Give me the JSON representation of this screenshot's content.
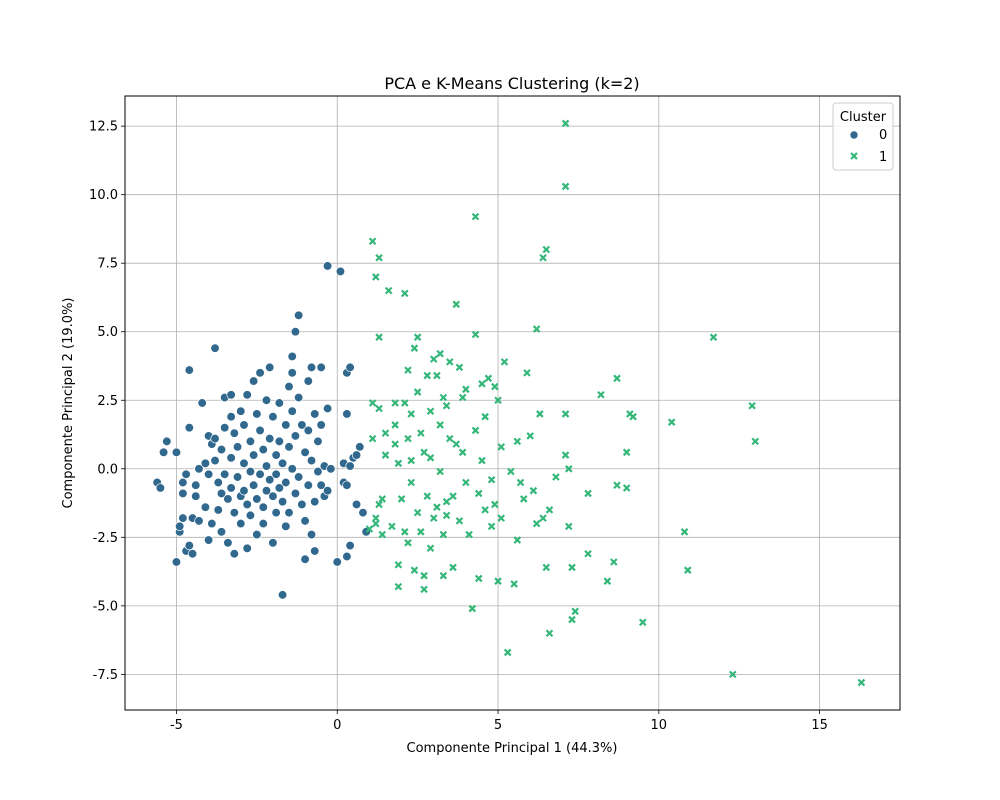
{
  "chart_data": {
    "type": "scatter",
    "title": "PCA e K-Means Clustering (k=2)",
    "xlabel": "Componente Principal 1 (44.3%)",
    "ylabel": "Componente Principal 2 (19.0%)",
    "xlim": [
      -6.6,
      17.5
    ],
    "ylim": [
      -8.8,
      13.6
    ],
    "xticks": [
      -5,
      0,
      5,
      10,
      15
    ],
    "yticks": [
      -7.5,
      -5.0,
      -2.5,
      0.0,
      2.5,
      5.0,
      7.5,
      10.0,
      12.5
    ],
    "grid": true,
    "legend": {
      "title": "Cluster",
      "placement": "top-right"
    },
    "colors": {
      "0": "#31688e",
      "1": "#35b779"
    },
    "series": [
      {
        "name": "0",
        "marker": "circle",
        "color": "#31688e",
        "points": [
          [
            -5.6,
            -0.5
          ],
          [
            -5.5,
            -0.7
          ],
          [
            -5.4,
            0.6
          ],
          [
            -5.3,
            1.0
          ],
          [
            -5.0,
            0.6
          ],
          [
            -5.0,
            -3.4
          ],
          [
            -4.9,
            -2.3
          ],
          [
            -4.9,
            -2.1
          ],
          [
            -4.8,
            -0.5
          ],
          [
            -4.8,
            -0.9
          ],
          [
            -4.8,
            -1.8
          ],
          [
            -4.7,
            -0.2
          ],
          [
            -4.7,
            -3.0
          ],
          [
            -4.6,
            1.5
          ],
          [
            -4.6,
            3.6
          ],
          [
            -4.6,
            -2.8
          ],
          [
            -4.5,
            -1.8
          ],
          [
            -4.5,
            -3.1
          ],
          [
            -4.4,
            -0.6
          ],
          [
            -4.4,
            -1.0
          ],
          [
            -4.3,
            0.0
          ],
          [
            -4.3,
            -1.9
          ],
          [
            -4.2,
            2.4
          ],
          [
            -4.1,
            0.2
          ],
          [
            -4.1,
            -1.4
          ],
          [
            -4.0,
            1.2
          ],
          [
            -4.0,
            -0.2
          ],
          [
            -4.0,
            -2.6
          ],
          [
            -3.9,
            0.9
          ],
          [
            -3.9,
            -2.0
          ],
          [
            -3.8,
            4.4
          ],
          [
            -3.8,
            1.1
          ],
          [
            -3.8,
            0.3
          ],
          [
            -3.7,
            -0.5
          ],
          [
            -3.7,
            -1.5
          ],
          [
            -3.6,
            0.7
          ],
          [
            -3.6,
            -0.9
          ],
          [
            -3.6,
            -2.3
          ],
          [
            -3.5,
            2.6
          ],
          [
            -3.5,
            1.5
          ],
          [
            -3.5,
            -0.2
          ],
          [
            -3.4,
            -1.1
          ],
          [
            -3.4,
            -2.7
          ],
          [
            -3.3,
            2.7
          ],
          [
            -3.3,
            1.9
          ],
          [
            -3.3,
            0.4
          ],
          [
            -3.3,
            -0.7
          ],
          [
            -3.2,
            1.3
          ],
          [
            -3.2,
            -1.6
          ],
          [
            -3.2,
            -3.1
          ],
          [
            -3.1,
            0.8
          ],
          [
            -3.1,
            -0.3
          ],
          [
            -3.0,
            2.1
          ],
          [
            -3.0,
            -1.0
          ],
          [
            -3.0,
            -2.0
          ],
          [
            -2.9,
            1.6
          ],
          [
            -2.9,
            0.2
          ],
          [
            -2.9,
            -0.8
          ],
          [
            -2.8,
            2.7
          ],
          [
            -2.8,
            -1.3
          ],
          [
            -2.8,
            -2.9
          ],
          [
            -2.7,
            1.0
          ],
          [
            -2.7,
            -0.1
          ],
          [
            -2.7,
            -1.7
          ],
          [
            -2.6,
            3.2
          ],
          [
            -2.6,
            0.5
          ],
          [
            -2.6,
            -0.6
          ],
          [
            -2.5,
            2.0
          ],
          [
            -2.5,
            -1.1
          ],
          [
            -2.5,
            -2.4
          ],
          [
            -2.4,
            3.5
          ],
          [
            -2.4,
            1.4
          ],
          [
            -2.4,
            -0.2
          ],
          [
            -2.3,
            0.7
          ],
          [
            -2.3,
            -1.4
          ],
          [
            -2.3,
            -2.0
          ],
          [
            -2.2,
            2.5
          ],
          [
            -2.2,
            0.1
          ],
          [
            -2.2,
            -0.8
          ],
          [
            -2.1,
            3.7
          ],
          [
            -2.1,
            1.1
          ],
          [
            -2.1,
            -0.4
          ],
          [
            -2.0,
            1.9
          ],
          [
            -2.0,
            -1.0
          ],
          [
            -2.0,
            -2.7
          ],
          [
            -1.9,
            0.5
          ],
          [
            -1.9,
            -0.2
          ],
          [
            -1.9,
            -1.6
          ],
          [
            -1.8,
            2.4
          ],
          [
            -1.8,
            1.0
          ],
          [
            -1.8,
            -0.7
          ],
          [
            -1.7,
            -4.6
          ],
          [
            -1.7,
            0.2
          ],
          [
            -1.7,
            -1.2
          ],
          [
            -1.6,
            1.6
          ],
          [
            -1.6,
            -0.5
          ],
          [
            -1.6,
            -2.1
          ],
          [
            -1.5,
            3.0
          ],
          [
            -1.5,
            0.8
          ],
          [
            -1.5,
            -1.6
          ],
          [
            -1.4,
            4.1
          ],
          [
            -1.4,
            3.5
          ],
          [
            -1.4,
            2.1
          ],
          [
            -1.4,
            0.0
          ],
          [
            -1.3,
            5.0
          ],
          [
            -1.3,
            1.2
          ],
          [
            -1.3,
            -0.9
          ],
          [
            -1.2,
            5.6
          ],
          [
            -1.2,
            2.6
          ],
          [
            -1.2,
            -0.3
          ],
          [
            -1.1,
            1.6
          ],
          [
            -1.1,
            -1.3
          ],
          [
            -1.0,
            -3.3
          ],
          [
            -1.0,
            0.6
          ],
          [
            -1.0,
            -1.9
          ],
          [
            -0.9,
            3.2
          ],
          [
            -0.9,
            1.4
          ],
          [
            -0.9,
            -0.6
          ],
          [
            -0.8,
            3.7
          ],
          [
            -0.8,
            0.3
          ],
          [
            -0.8,
            -2.4
          ],
          [
            -0.7,
            2.0
          ],
          [
            -0.7,
            -1.2
          ],
          [
            -0.7,
            -3.0
          ],
          [
            -0.6,
            1.0
          ],
          [
            -0.6,
            -0.1
          ],
          [
            -0.5,
            3.7
          ],
          [
            -0.5,
            1.6
          ],
          [
            -0.5,
            -0.6
          ],
          [
            -0.4,
            0.1
          ],
          [
            -0.4,
            -1.0
          ],
          [
            -0.3,
            7.4
          ],
          [
            -0.3,
            2.2
          ],
          [
            -0.2,
            0.0
          ],
          [
            0.0,
            -3.4
          ],
          [
            0.1,
            7.2
          ],
          [
            0.2,
            -0.5
          ],
          [
            0.3,
            -0.6
          ],
          [
            0.3,
            3.5
          ],
          [
            0.3,
            2.0
          ],
          [
            0.3,
            -3.2
          ],
          [
            0.4,
            3.7
          ],
          [
            0.4,
            -2.8
          ],
          [
            0.5,
            0.4
          ],
          [
            0.6,
            0.5
          ],
          [
            0.6,
            -1.3
          ],
          [
            0.7,
            0.8
          ],
          [
            0.8,
            -1.6
          ],
          [
            0.9,
            -2.3
          ],
          [
            0.2,
            0.2
          ],
          [
            0.4,
            0.1
          ],
          [
            -0.3,
            -0.8
          ]
        ]
      },
      {
        "name": "1",
        "marker": "x",
        "color": "#35b779",
        "points": [
          [
            1.0,
            -2.2
          ],
          [
            1.1,
            8.3
          ],
          [
            1.1,
            1.1
          ],
          [
            1.1,
            2.4
          ],
          [
            1.2,
            7.0
          ],
          [
            1.2,
            -2.0
          ],
          [
            1.2,
            -1.8
          ],
          [
            1.3,
            7.7
          ],
          [
            1.3,
            4.8
          ],
          [
            1.3,
            2.2
          ],
          [
            1.3,
            -1.3
          ],
          [
            1.4,
            -2.4
          ],
          [
            1.4,
            -1.1
          ],
          [
            1.5,
            1.3
          ],
          [
            1.5,
            0.5
          ],
          [
            1.6,
            6.5
          ],
          [
            1.7,
            -2.1
          ],
          [
            1.8,
            2.4
          ],
          [
            1.8,
            1.6
          ],
          [
            1.8,
            0.9
          ],
          [
            1.9,
            -4.3
          ],
          [
            1.9,
            -3.5
          ],
          [
            1.9,
            0.2
          ],
          [
            2.0,
            -1.1
          ],
          [
            2.1,
            6.4
          ],
          [
            2.1,
            2.4
          ],
          [
            2.1,
            -2.3
          ],
          [
            2.2,
            1.1
          ],
          [
            2.2,
            -2.7
          ],
          [
            2.3,
            2.0
          ],
          [
            2.3,
            0.3
          ],
          [
            2.3,
            -0.5
          ],
          [
            2.4,
            4.4
          ],
          [
            2.4,
            -3.7
          ],
          [
            2.5,
            4.8
          ],
          [
            2.5,
            2.8
          ],
          [
            2.5,
            -1.6
          ],
          [
            2.6,
            1.3
          ],
          [
            2.6,
            -2.3
          ],
          [
            2.7,
            0.6
          ],
          [
            2.7,
            -3.9
          ],
          [
            2.7,
            -4.4
          ],
          [
            2.8,
            3.4
          ],
          [
            2.8,
            -1.0
          ],
          [
            2.9,
            2.1
          ],
          [
            2.9,
            0.4
          ],
          [
            3.0,
            4.0
          ],
          [
            3.0,
            -1.8
          ],
          [
            3.1,
            3.4
          ],
          [
            3.1,
            -1.4
          ],
          [
            3.2,
            4.2
          ],
          [
            3.2,
            1.6
          ],
          [
            3.2,
            -0.1
          ],
          [
            3.3,
            2.6
          ],
          [
            3.3,
            -2.4
          ],
          [
            3.3,
            -3.9
          ],
          [
            3.4,
            2.3
          ],
          [
            3.4,
            -1.7
          ],
          [
            3.5,
            3.9
          ],
          [
            3.5,
            1.1
          ],
          [
            3.6,
            -1.0
          ],
          [
            3.6,
            -3.6
          ],
          [
            3.7,
            6.0
          ],
          [
            3.7,
            0.9
          ],
          [
            3.8,
            -1.9
          ],
          [
            3.9,
            2.6
          ],
          [
            3.9,
            0.6
          ],
          [
            4.0,
            2.9
          ],
          [
            4.0,
            -0.5
          ],
          [
            4.1,
            -2.4
          ],
          [
            4.2,
            -5.1
          ],
          [
            4.3,
            9.2
          ],
          [
            4.3,
            4.9
          ],
          [
            4.3,
            1.4
          ],
          [
            4.4,
            -0.9
          ],
          [
            4.4,
            -4.0
          ],
          [
            4.5,
            3.1
          ],
          [
            4.5,
            0.3
          ],
          [
            4.6,
            -1.5
          ],
          [
            4.7,
            3.3
          ],
          [
            4.8,
            -2.1
          ],
          [
            4.9,
            3.0
          ],
          [
            4.9,
            -1.3
          ],
          [
            5.0,
            2.5
          ],
          [
            5.0,
            -4.1
          ],
          [
            5.1,
            -1.8
          ],
          [
            5.1,
            0.8
          ],
          [
            5.2,
            3.9
          ],
          [
            5.3,
            -6.7
          ],
          [
            5.4,
            -0.1
          ],
          [
            5.5,
            -4.2
          ],
          [
            5.6,
            1.0
          ],
          [
            5.7,
            -0.5
          ],
          [
            5.8,
            -1.1
          ],
          [
            5.9,
            3.5
          ],
          [
            6.0,
            1.2
          ],
          [
            6.1,
            -0.8
          ],
          [
            6.2,
            5.1
          ],
          [
            6.2,
            -2.0
          ],
          [
            6.3,
            2.0
          ],
          [
            6.4,
            7.7
          ],
          [
            6.4,
            -1.8
          ],
          [
            6.5,
            8.0
          ],
          [
            6.5,
            -3.6
          ],
          [
            6.6,
            -1.5
          ],
          [
            6.6,
            -6.0
          ],
          [
            7.1,
            12.6
          ],
          [
            7.1,
            10.3
          ],
          [
            7.1,
            2.0
          ],
          [
            7.1,
            0.5
          ],
          [
            7.2,
            -2.1
          ],
          [
            7.2,
            0.0
          ],
          [
            7.3,
            -3.6
          ],
          [
            7.3,
            -5.5
          ],
          [
            7.4,
            -5.2
          ],
          [
            7.8,
            -3.1
          ],
          [
            7.8,
            -0.9
          ],
          [
            8.2,
            2.7
          ],
          [
            8.4,
            -4.1
          ],
          [
            8.6,
            -3.4
          ],
          [
            8.7,
            3.3
          ],
          [
            8.7,
            -0.6
          ],
          [
            9.0,
            0.6
          ],
          [
            9.0,
            -0.7
          ],
          [
            9.1,
            2.0
          ],
          [
            9.2,
            1.9
          ],
          [
            9.5,
            -5.6
          ],
          [
            10.4,
            1.7
          ],
          [
            10.8,
            -2.3
          ],
          [
            10.9,
            -3.7
          ],
          [
            11.7,
            4.8
          ],
          [
            12.3,
            -7.5
          ],
          [
            12.9,
            2.3
          ],
          [
            13.0,
            1.0
          ],
          [
            16.3,
            -7.8
          ],
          [
            3.4,
            -1.2
          ],
          [
            4.8,
            -0.4
          ],
          [
            2.9,
            -2.9
          ],
          [
            5.6,
            -2.6
          ],
          [
            4.6,
            1.9
          ],
          [
            3.8,
            3.7
          ],
          [
            6.8,
            -0.3
          ],
          [
            2.2,
            3.6
          ]
        ]
      }
    ]
  }
}
